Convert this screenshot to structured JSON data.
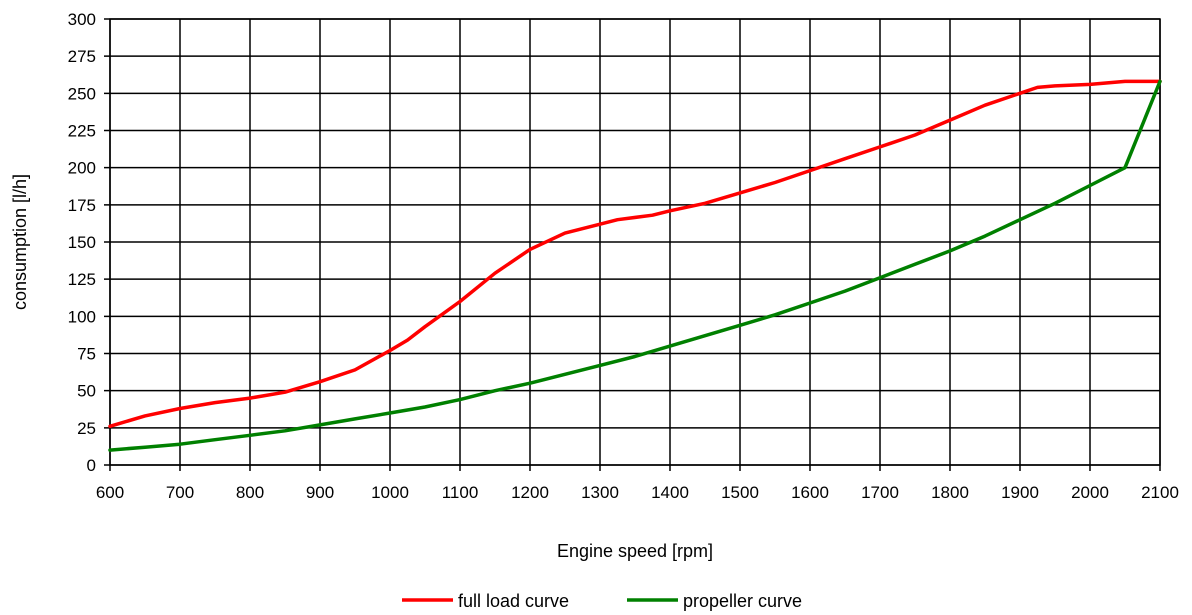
{
  "chart_data": {
    "type": "line",
    "title": "",
    "xlabel": "Engine speed [rpm]",
    "ylabel": "consumption [l/h]",
    "xlim": [
      600,
      2100
    ],
    "ylim": [
      0,
      300
    ],
    "x_ticks": [
      600,
      700,
      800,
      900,
      1000,
      1100,
      1200,
      1300,
      1400,
      1500,
      1600,
      1700,
      1800,
      1900,
      2000,
      2100
    ],
    "y_ticks": [
      0,
      25,
      50,
      75,
      100,
      125,
      150,
      175,
      200,
      225,
      250,
      275,
      300
    ],
    "grid": true,
    "legend_position": "bottom",
    "series": [
      {
        "name": "full load curve",
        "color": "#ff0000",
        "x": [
          600,
          650,
          700,
          750,
          800,
          850,
          900,
          950,
          1000,
          1025,
          1050,
          1100,
          1150,
          1200,
          1250,
          1300,
          1325,
          1375,
          1400,
          1450,
          1500,
          1550,
          1600,
          1650,
          1700,
          1750,
          1800,
          1850,
          1900,
          1925,
          1950,
          2000,
          2050,
          2100
        ],
        "y": [
          26,
          33,
          38,
          42,
          45,
          49,
          56,
          64,
          77,
          84,
          93,
          110,
          129,
          145,
          156,
          162,
          165,
          168,
          171,
          176,
          183,
          190,
          198,
          206,
          214,
          222,
          232,
          242,
          250,
          254,
          255,
          256,
          258,
          258
        ]
      },
      {
        "name": "propeller curve",
        "color": "#008000",
        "x": [
          600,
          650,
          700,
          750,
          800,
          850,
          900,
          950,
          1000,
          1050,
          1100,
          1150,
          1200,
          1250,
          1300,
          1350,
          1400,
          1450,
          1500,
          1550,
          1600,
          1650,
          1700,
          1750,
          1800,
          1850,
          1900,
          1950,
          2000,
          2050,
          2100
        ],
        "y": [
          10,
          12,
          14,
          17,
          20,
          23,
          27,
          31,
          35,
          39,
          44,
          50,
          55,
          61,
          67,
          73,
          80,
          87,
          94,
          101,
          109,
          117,
          126,
          135,
          144,
          154,
          165,
          176,
          188,
          200,
          258
        ]
      }
    ]
  }
}
